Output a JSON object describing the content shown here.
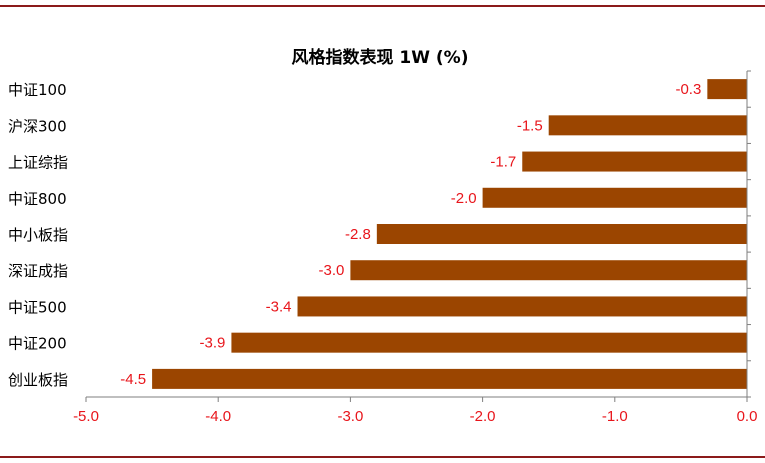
{
  "chart_data": {
    "type": "bar",
    "orientation": "horizontal",
    "title": "风格指数表现 1W (%)",
    "categories": [
      "中证100",
      "沪深300",
      "上证综指",
      "中证800",
      "中小板指",
      "深证成指",
      "中证500",
      "中证200",
      "创业板指"
    ],
    "values": [
      -0.3,
      -1.5,
      -1.7,
      -2.0,
      -2.8,
      -3.0,
      -3.4,
      -3.9,
      -4.5
    ],
    "value_labels": [
      "-0.3",
      "-1.5",
      "-1.7",
      "-2.0",
      "-2.8",
      "-3.0",
      "-3.4",
      "-3.9",
      "-4.5"
    ],
    "xlim": [
      -5.0,
      0.0
    ],
    "x_ticks": [
      -5.0,
      -4.0,
      -3.0,
      -2.0,
      -1.0,
      0.0
    ],
    "x_tick_labels": [
      "-5.0",
      "-4.0",
      "-3.0",
      "-2.0",
      "-1.0",
      "0.0"
    ],
    "grid": false,
    "legend": "none",
    "xlabel": "",
    "ylabel": ""
  },
  "colors": {
    "bar": "#9b4500",
    "label_text": "#e8151b",
    "tick_text": "#e8151b",
    "axis": "#7f7f7f",
    "rule": "#8b1a1a"
  }
}
